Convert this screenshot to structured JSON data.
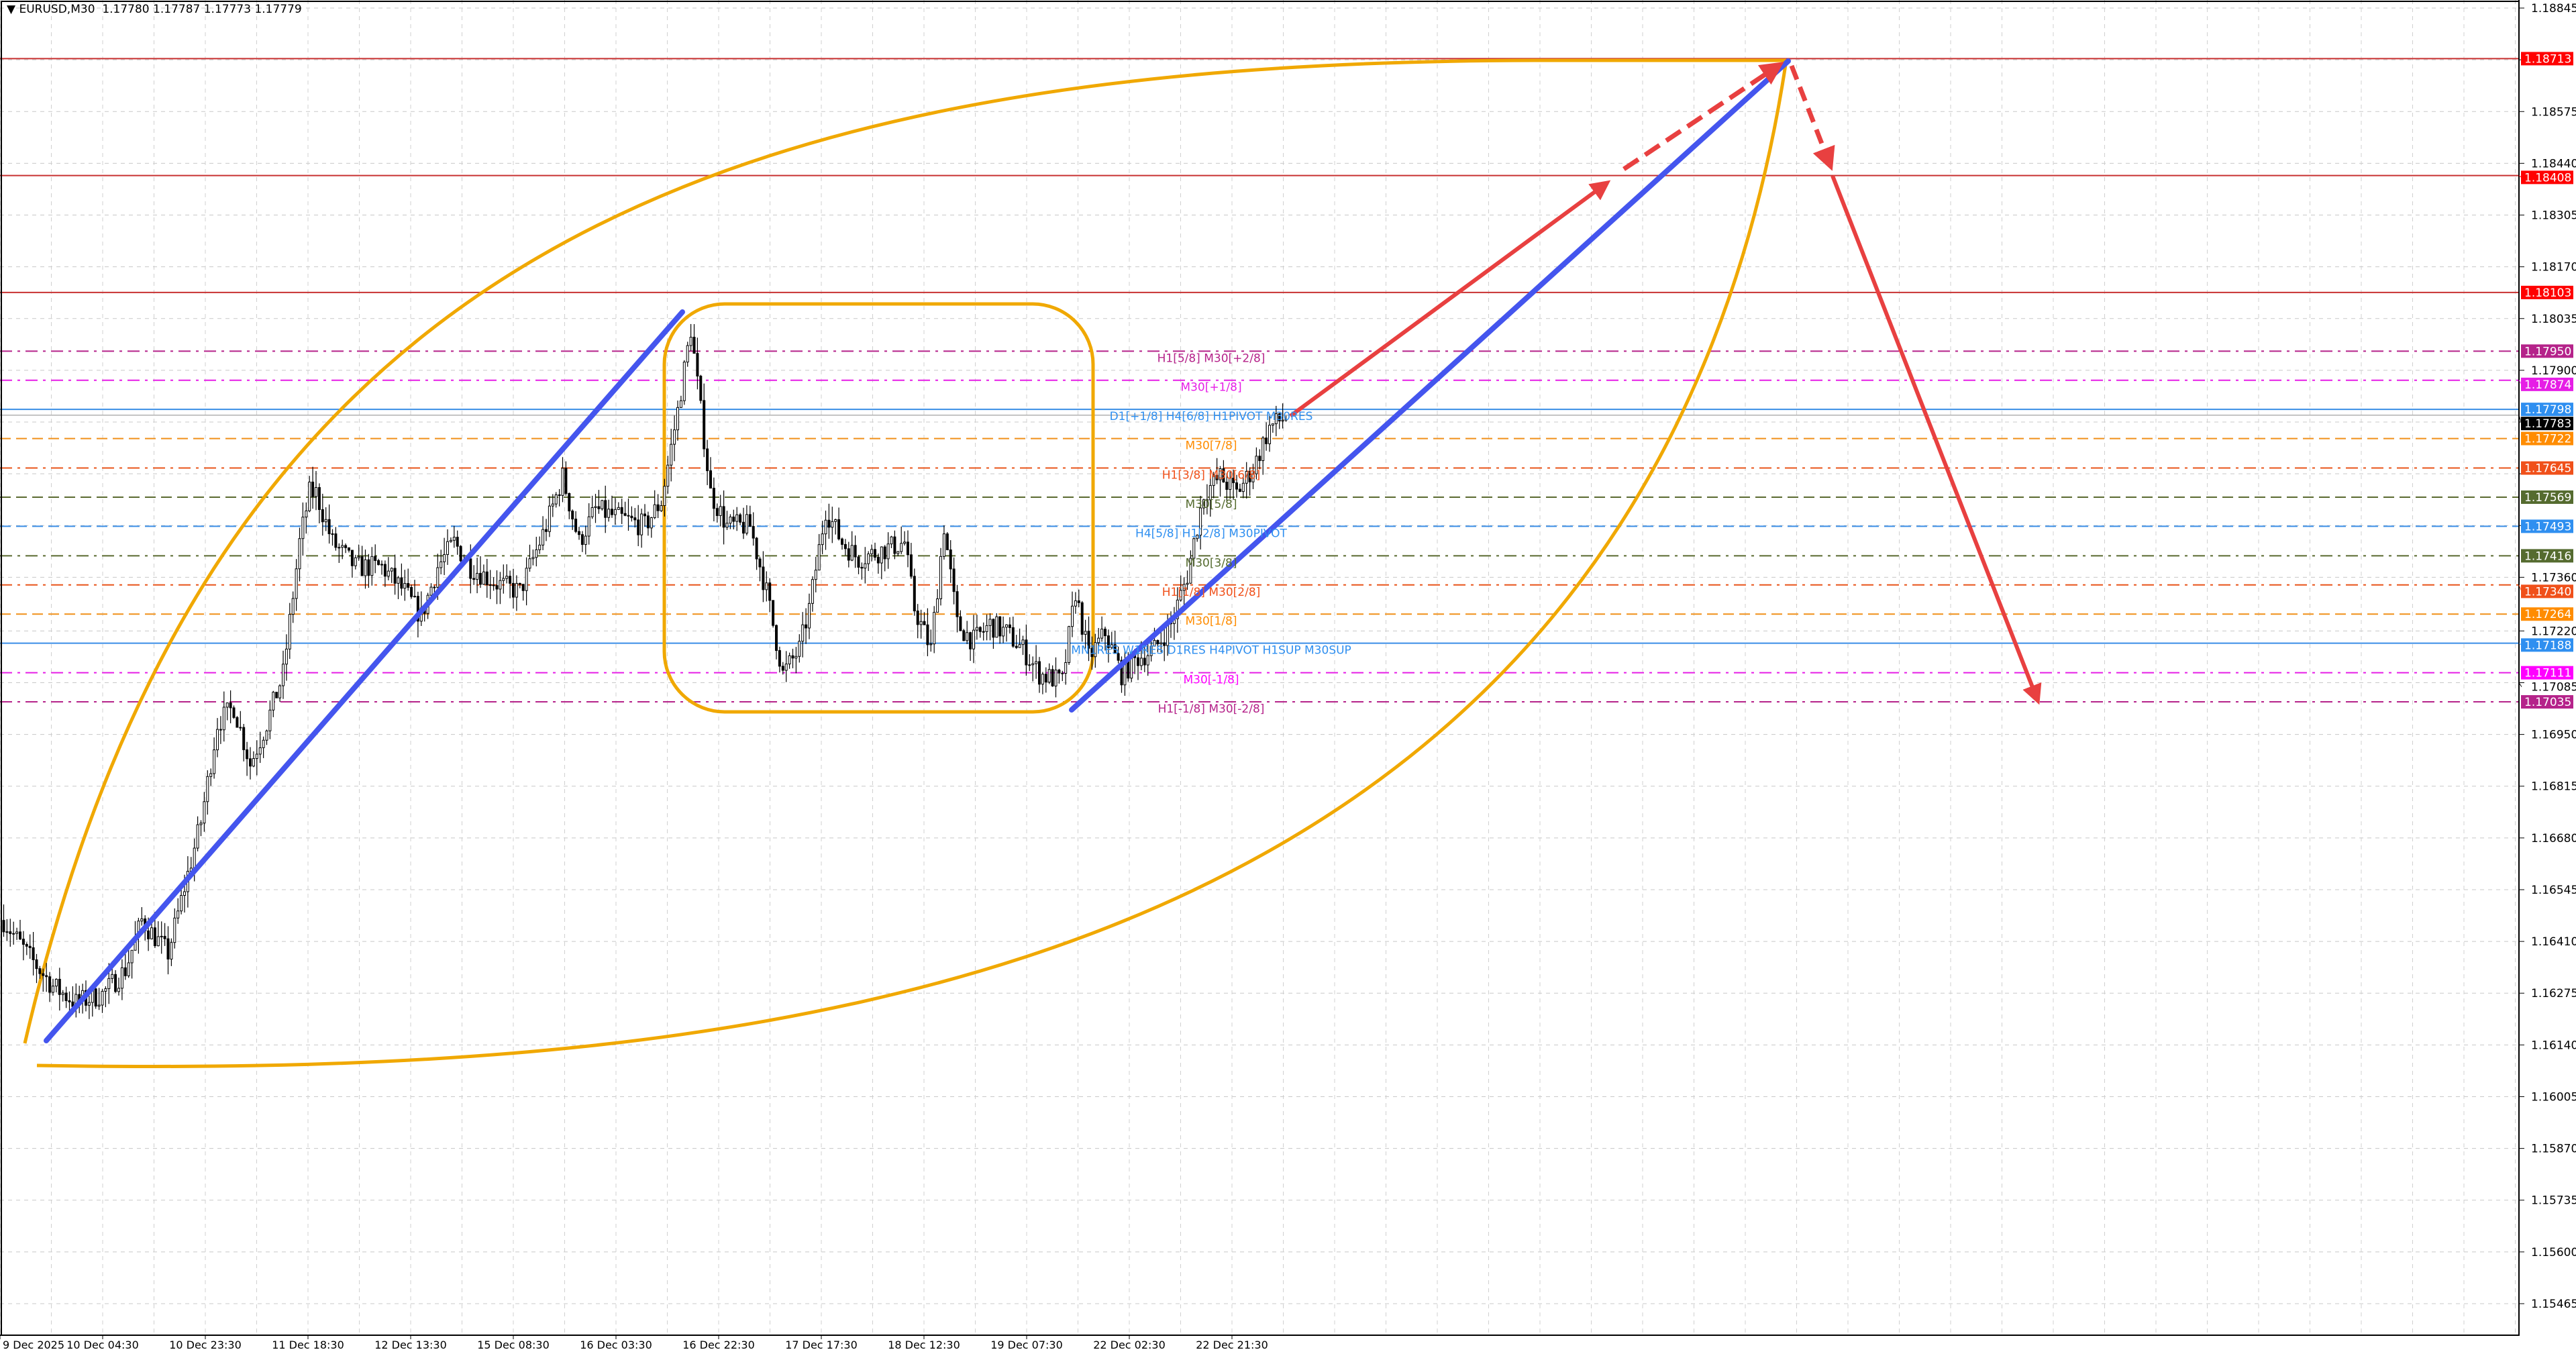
{
  "header": {
    "symbol": "EURUSD,M30",
    "ohlc": "1.17780 1.17787 1.17773 1.17779",
    "collapse_icon": "triangle-down-icon"
  },
  "chart_data": {
    "type": "candlestick",
    "symbol": "EURUSD",
    "timeframe": "M30",
    "ylim": [
      1.15465,
      1.18845
    ],
    "grid": true,
    "y_ticks": [
      "1.18845",
      "1.18710",
      "1.18575",
      "1.18440",
      "1.18305",
      "1.18170",
      "1.18035",
      "1.17900",
      "1.17765",
      "1.17630",
      "1.17495",
      "1.17360",
      "1.17220",
      "1.17085",
      "1.16950",
      "1.16815",
      "1.16680",
      "1.16545",
      "1.16410",
      "1.16275",
      "1.16140",
      "1.16005",
      "1.15870",
      "1.15735",
      "1.15600",
      "1.15465"
    ],
    "y_tick_labels_visible": [
      "1.18845",
      "1.18575",
      "1.18440",
      "1.18305",
      "1.18170",
      "1.18035",
      "1.17900",
      "1.17360",
      "1.17220",
      "1.17085",
      "1.16950",
      "1.16815",
      "1.16680",
      "1.16545",
      "1.16410",
      "1.16275",
      "1.16140",
      "1.16005",
      "1.15870",
      "1.15735",
      "1.15600",
      "1.15465"
    ],
    "x_tick_labels": [
      "9 Dec 2025",
      "10 Dec 04:30",
      "10 Dec 23:30",
      "11 Dec 18:30",
      "12 Dec 13:30",
      "15 Dec 08:30",
      "16 Dec 03:30",
      "16 Dec 22:30",
      "17 Dec 17:30",
      "18 Dec 12:30",
      "19 Dec 07:30",
      "22 Dec 02:30",
      "22 Dec 21:30"
    ],
    "price_path_by_bar": [
      [
        0,
        1.16465
      ],
      [
        7,
        1.16379
      ],
      [
        15,
        1.16293
      ],
      [
        22,
        1.1625
      ],
      [
        30,
        1.16272
      ],
      [
        37,
        1.16336
      ],
      [
        42,
        1.16465
      ],
      [
        50,
        1.16379
      ],
      [
        55,
        1.16551
      ],
      [
        60,
        1.16722
      ],
      [
        65,
        1.16979
      ],
      [
        70,
        1.17022
      ],
      [
        75,
        1.16872
      ],
      [
        80,
        1.16979
      ],
      [
        85,
        1.17108
      ],
      [
        90,
        1.17451
      ],
      [
        93,
        1.1758
      ],
      [
        95,
        1.1758
      ],
      [
        100,
        1.17451
      ],
      [
        107,
        1.17387
      ],
      [
        115,
        1.17387
      ],
      [
        122,
        1.17322
      ],
      [
        127,
        1.17258
      ],
      [
        132,
        1.17387
      ],
      [
        137,
        1.17451
      ],
      [
        142,
        1.17387
      ],
      [
        150,
        1.17344
      ],
      [
        157,
        1.17322
      ],
      [
        165,
        1.17494
      ],
      [
        170,
        1.17622
      ],
      [
        175,
        1.17451
      ],
      [
        180,
        1.17537
      ],
      [
        187,
        1.17515
      ],
      [
        195,
        1.17494
      ],
      [
        200,
        1.17558
      ],
      [
        205,
        1.17794
      ],
      [
        209,
        1.18008
      ],
      [
        212,
        1.17794
      ],
      [
        215,
        1.1758
      ],
      [
        220,
        1.17494
      ],
      [
        227,
        1.17494
      ],
      [
        232,
        1.17322
      ],
      [
        237,
        1.17108
      ],
      [
        242,
        1.17172
      ],
      [
        245,
        1.17279
      ],
      [
        250,
        1.17537
      ],
      [
        255,
        1.17451
      ],
      [
        260,
        1.17408
      ],
      [
        267,
        1.1743
      ],
      [
        274,
        1.17451
      ],
      [
        277,
        1.17279
      ],
      [
        282,
        1.17172
      ],
      [
        286,
        1.17494
      ],
      [
        290,
        1.17237
      ],
      [
        295,
        1.17194
      ],
      [
        300,
        1.17237
      ],
      [
        305,
        1.17215
      ],
      [
        310,
        1.17172
      ],
      [
        315,
        1.17108
      ],
      [
        322,
        1.17087
      ],
      [
        326,
        1.17322
      ],
      [
        330,
        1.1715
      ],
      [
        335,
        1.17215
      ],
      [
        340,
        1.17108
      ],
      [
        345,
        1.1715
      ],
      [
        350,
        1.17172
      ],
      [
        355,
        1.17237
      ],
      [
        360,
        1.17365
      ],
      [
        365,
        1.1758
      ],
      [
        370,
        1.17622
      ],
      [
        375,
        1.1758
      ],
      [
        380,
        1.17644
      ],
      [
        385,
        1.17751
      ],
      [
        390,
        1.17779
      ]
    ],
    "current_price": "1.17783",
    "levels": [
      {
        "price": "1.18713",
        "color": "#ff0000",
        "line": "#c83232",
        "style": "solid",
        "label": ""
      },
      {
        "price": "1.18408",
        "color": "#ff0000",
        "line": "#c83232",
        "style": "solid",
        "label": ""
      },
      {
        "price": "1.18103",
        "color": "#ff0000",
        "line": "#c83232",
        "style": "solid",
        "label": ""
      },
      {
        "price": "1.17950",
        "color": "#b5238a",
        "line": "#b5238a",
        "style": "dashdot",
        "label": "H1[5/8] M30[+2/8]"
      },
      {
        "price": "1.17874",
        "color": "#e61ee6",
        "line": "#e61ee6",
        "style": "dashdot",
        "label": "M30[+1/8]"
      },
      {
        "price": "1.17798",
        "color": "#2f8ff0",
        "line": "#3a8ee6",
        "style": "solid",
        "label": "D1[+1/8] H4[6/8] H1PIVOT M30RES"
      },
      {
        "price": "1.17722",
        "color": "#ff8c00",
        "line": "#f0901a",
        "style": "dash",
        "label": "M30[7/8]"
      },
      {
        "price": "1.17645",
        "color": "#f0501a",
        "line": "#e8541a",
        "style": "dashdot",
        "label": "H1[3/8] M30[6/8]"
      },
      {
        "price": "1.17569",
        "color": "#556b2f",
        "line": "#5a6a30",
        "style": "dash",
        "label": "M30[5/8]"
      },
      {
        "price": "1.17493",
        "color": "#2f8ff0",
        "line": "#3a8ee6",
        "style": "dash",
        "label": "H4[5/8] H1[2/8] M30PIVOT"
      },
      {
        "price": "1.17416",
        "color": "#556b2f",
        "line": "#5a6a30",
        "style": "dashdot",
        "label": "M30[3/8]"
      },
      {
        "price": "1.17340",
        "color": "#f0501a",
        "line": "#e8541a",
        "style": "dashdot",
        "label": "H1[1/8] M30[2/8]"
      },
      {
        "price": "1.17264",
        "color": "#ff8c00",
        "line": "#f0901a",
        "style": "dash",
        "label": "M30[1/8]"
      },
      {
        "price": "1.17188",
        "color": "#2f8ff0",
        "line": "#3a8ee6",
        "style": "solid",
        "label": "MN1RES W1RES D1RES H4PIVOT H1SUP M30SUP"
      },
      {
        "price": "1.17111",
        "color": "#ff00ff",
        "line": "#e61ee6",
        "style": "dashdot",
        "label": "M30[-1/8]"
      },
      {
        "price": "1.17035",
        "color": "#b5238a",
        "line": "#b5238a",
        "style": "dashdot",
        "label": "H1[-1/8] M30[-2/8]"
      }
    ],
    "colors": {
      "trendline": "#4455ee",
      "shape": "#f0a800",
      "arrow": "#e84040",
      "bull": "#ffffff",
      "bear": "#000000",
      "grid": "#c0c0c0"
    }
  }
}
